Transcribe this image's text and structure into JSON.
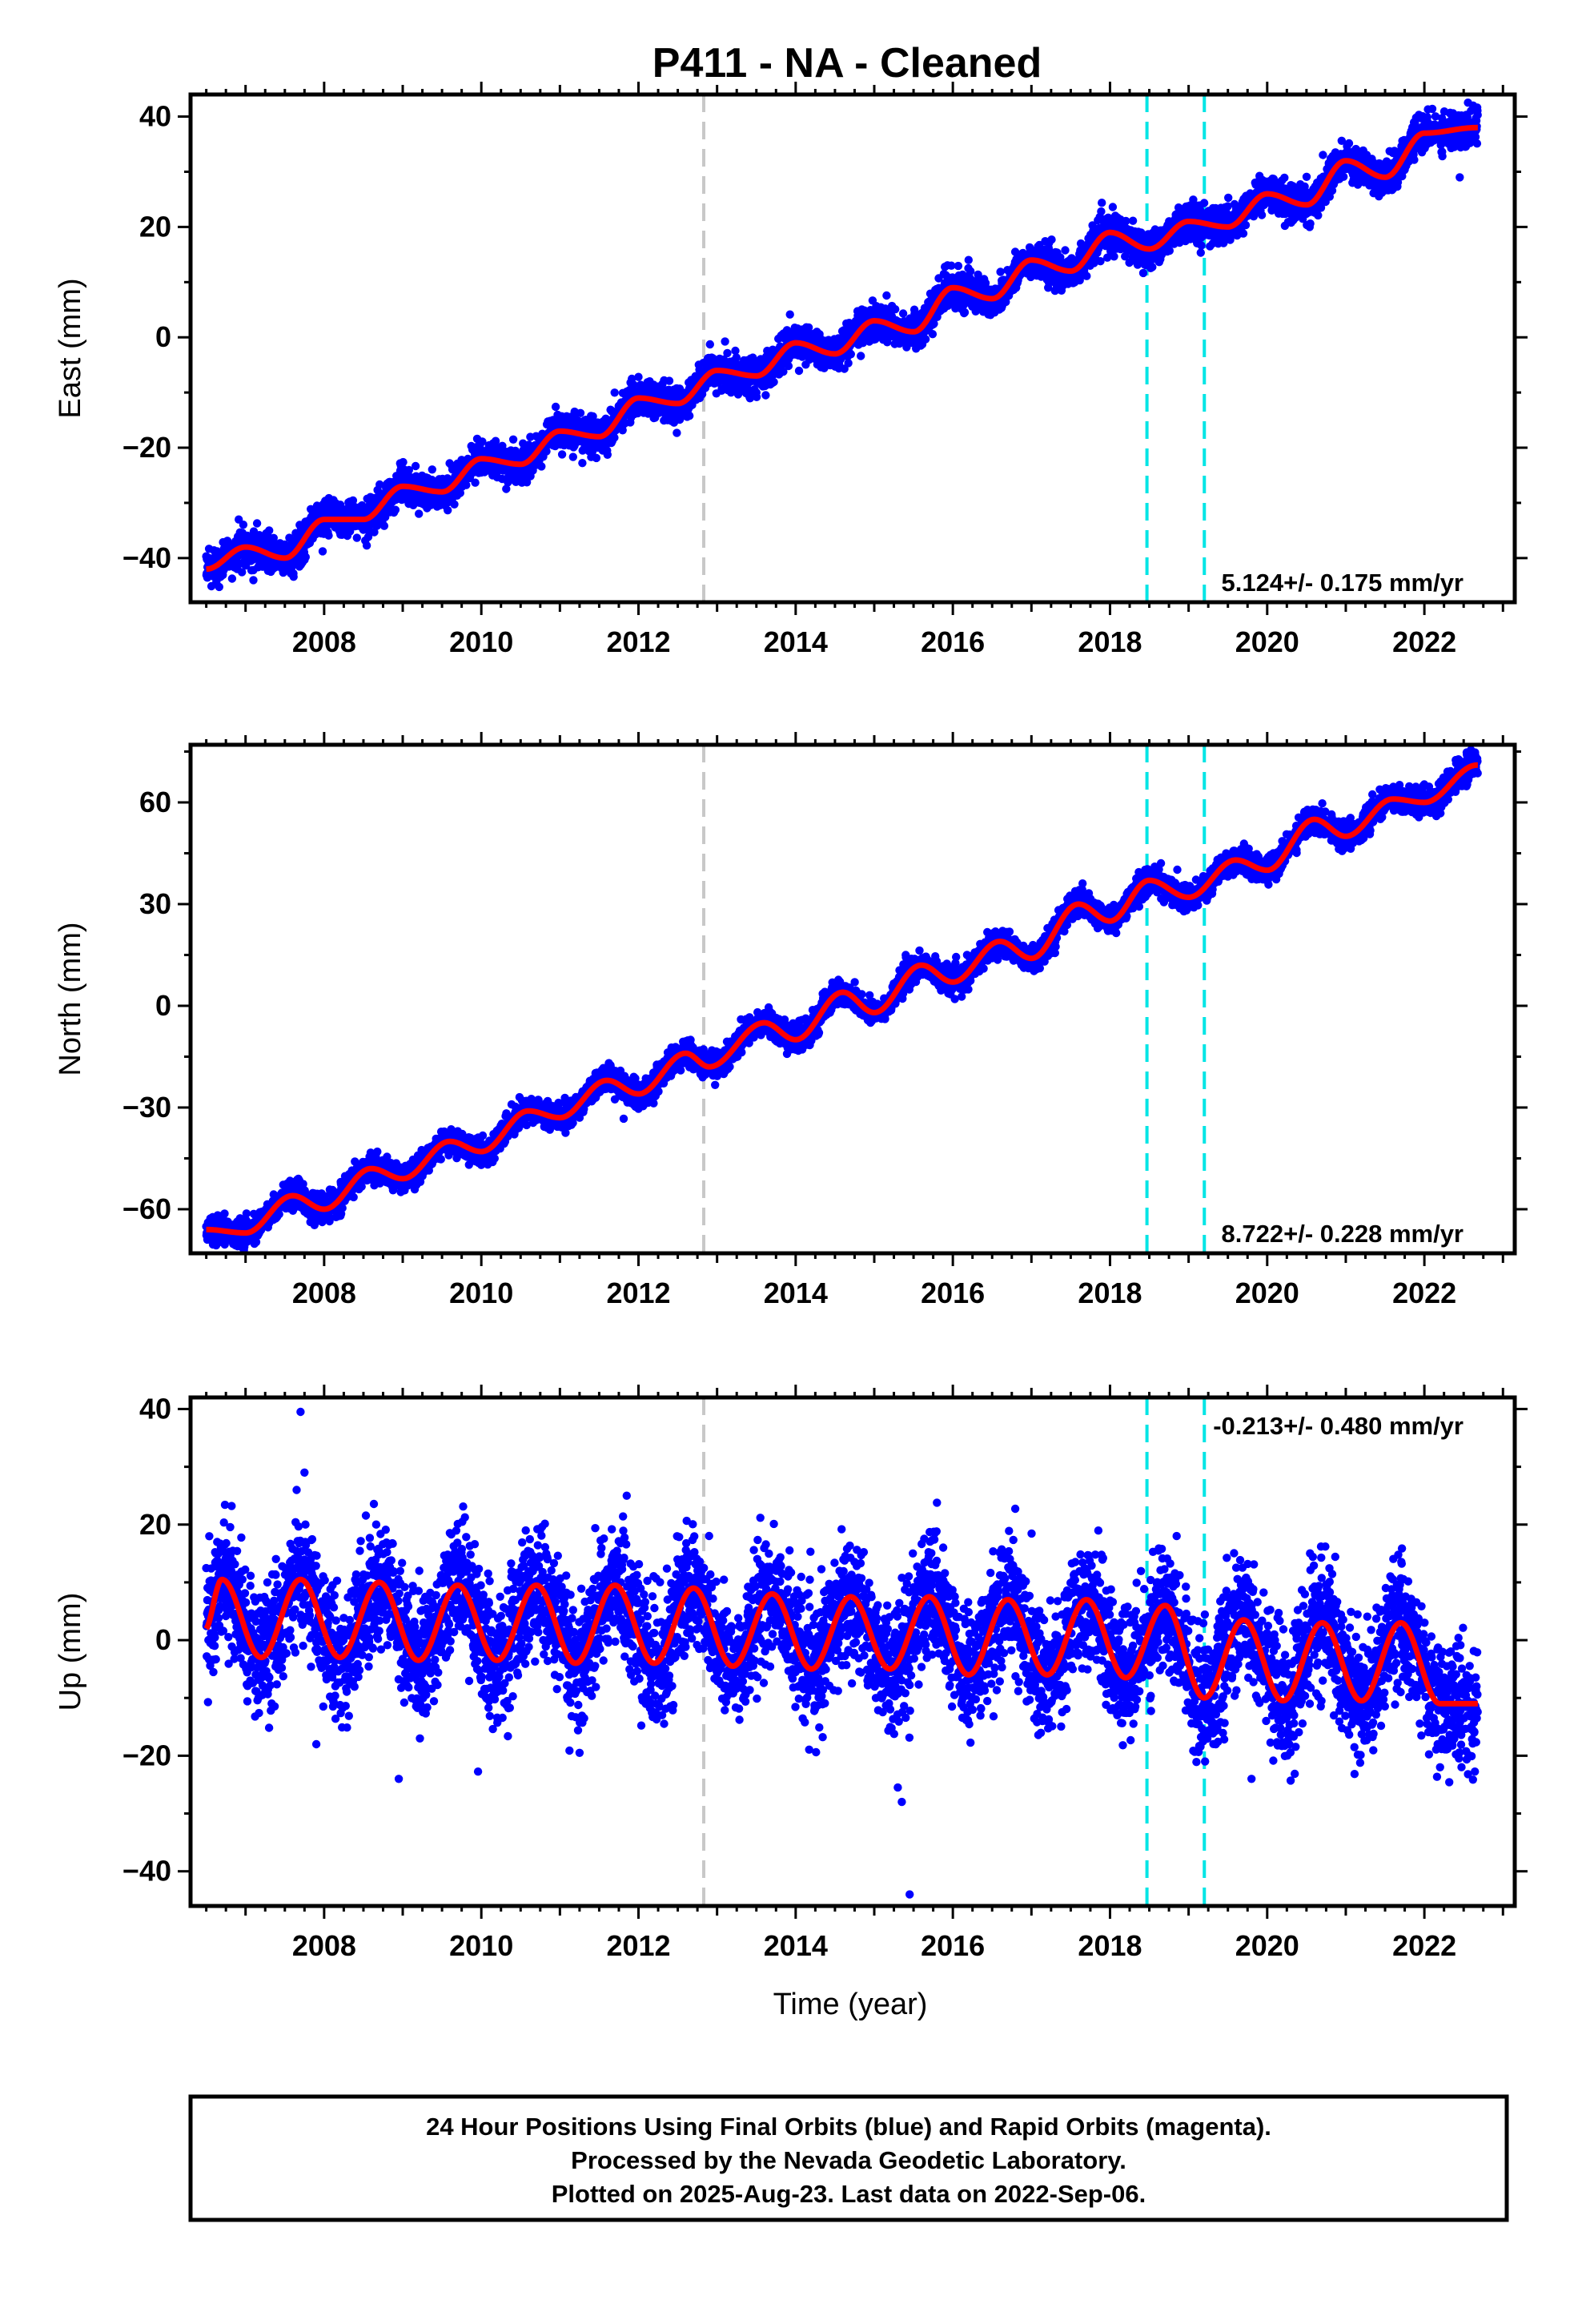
{
  "title": "P411  - NA - Cleaned",
  "xlabel": "Time (year)",
  "footer": [
    "24 Hour Positions Using Final Orbits (blue) and Rapid Orbits (magenta).",
    "Processed by the Nevada Geodetic Laboratory.",
    "Plotted on 2025-Aug-23. Last data on 2022-Sep-06."
  ],
  "colors": {
    "final_orbits": "#0000ff",
    "model_fit": "#ff0000",
    "event_line_gray": "#c8c8c8",
    "event_line_cyan": "#00e5e5",
    "frame": "#000000"
  },
  "chart_data": [
    {
      "type": "scatter",
      "component": "East",
      "ylabel": "East (mm)",
      "xlim": [
        2006.3,
        2023.15
      ],
      "ylim": [
        -48,
        44
      ],
      "x_ticks": [
        2008,
        2010,
        2012,
        2014,
        2016,
        2018,
        2020,
        2022
      ],
      "y_ticks": [
        -40,
        -20,
        0,
        20,
        40
      ],
      "grid": false,
      "rate_label": "5.124+/- 0.175 mm/yr",
      "rate_position": "bottom-right",
      "vertical_lines": [
        {
          "x": 2012.83,
          "color": "gray",
          "style": "dashed"
        },
        {
          "x": 2018.47,
          "color": "cyan",
          "style": "dashed"
        },
        {
          "x": 2019.2,
          "color": "cyan",
          "style": "dashed"
        }
      ],
      "series": [
        {
          "kind": "model",
          "x": [
            2006.5,
            2007.0,
            2007.5,
            2008.0,
            2008.5,
            2009.0,
            2009.5,
            2010.0,
            2010.5,
            2011.0,
            2011.5,
            2012.0,
            2012.5,
            2013.0,
            2013.5,
            2014.0,
            2014.5,
            2015.0,
            2015.5,
            2016.0,
            2016.5,
            2017.0,
            2017.5,
            2018.0,
            2018.5,
            2019.0,
            2019.5,
            2020.0,
            2020.5,
            2021.0,
            2021.5,
            2022.0,
            2022.67
          ],
          "y": [
            -42,
            -38,
            -40,
            -33,
            -33,
            -27,
            -28,
            -22,
            -23,
            -17,
            -18,
            -11,
            -12,
            -6,
            -7,
            -1,
            -3,
            3,
            1,
            9,
            7,
            14,
            12,
            19,
            16,
            21,
            20,
            26,
            24,
            32,
            29,
            37,
            38
          ]
        },
        {
          "kind": "daily_positions",
          "x_range": [
            2006.5,
            2022.68
          ],
          "scatter_std": 1.6,
          "outliers": [
            {
              "x": 2007.1,
              "y": -44
            },
            {
              "x": 2007.3,
              "y": -35
            },
            {
              "x": 2016.2,
              "y": 14
            },
            {
              "x": 2022.45,
              "y": 29
            },
            {
              "x": 2022.62,
              "y": 42
            }
          ]
        }
      ]
    },
    {
      "type": "scatter",
      "component": "North",
      "ylabel": "North (mm)",
      "xlim": [
        2006.3,
        2023.15
      ],
      "ylim": [
        -73,
        77
      ],
      "x_ticks": [
        2008,
        2010,
        2012,
        2014,
        2016,
        2018,
        2020,
        2022
      ],
      "y_ticks": [
        -60,
        -30,
        0,
        30,
        60
      ],
      "grid": false,
      "rate_label": "8.722+/- 0.228 mm/yr",
      "rate_position": "bottom-right",
      "vertical_lines": [
        {
          "x": 2012.83,
          "color": "gray",
          "style": "dashed"
        },
        {
          "x": 2018.47,
          "color": "cyan",
          "style": "dashed"
        },
        {
          "x": 2019.2,
          "color": "cyan",
          "style": "dashed"
        }
      ],
      "series": [
        {
          "kind": "model",
          "x": [
            2006.5,
            2007.0,
            2007.6,
            2008.0,
            2008.6,
            2009.0,
            2009.6,
            2010.0,
            2010.6,
            2011.0,
            2011.6,
            2012.0,
            2012.6,
            2012.9,
            2013.6,
            2014.0,
            2014.6,
            2015.0,
            2015.6,
            2016.0,
            2016.6,
            2017.0,
            2017.6,
            2018.0,
            2018.5,
            2019.0,
            2019.6,
            2020.0,
            2020.6,
            2021.0,
            2021.6,
            2022.0,
            2022.67
          ],
          "y": [
            -66,
            -67,
            -56,
            -60,
            -48,
            -51,
            -40,
            -43,
            -31,
            -33,
            -22,
            -26,
            -14,
            -18,
            -5,
            -10,
            4,
            -2,
            12,
            7,
            19,
            14,
            30,
            25,
            37,
            32,
            43,
            40,
            55,
            50,
            61,
            60,
            71
          ]
        },
        {
          "kind": "daily_positions",
          "x_range": [
            2006.5,
            2022.68
          ],
          "scatter_std": 1.9,
          "outliers": [
            {
              "x": 2006.9,
              "y": -70
            },
            {
              "x": 2007.6,
              "y": -52
            },
            {
              "x": 2015.4,
              "y": 15
            }
          ]
        }
      ]
    },
    {
      "type": "scatter",
      "component": "Up",
      "ylabel": "Up (mm)",
      "xlim": [
        2006.3,
        2023.15
      ],
      "ylim": [
        -46,
        42
      ],
      "x_ticks": [
        2008,
        2010,
        2012,
        2014,
        2016,
        2018,
        2020,
        2022
      ],
      "y_ticks": [
        -40,
        -20,
        0,
        20,
        40
      ],
      "grid": false,
      "rate_label": "-0.213+/- 0.480 mm/yr",
      "rate_position": "top-right",
      "vertical_lines": [
        {
          "x": 2012.83,
          "color": "gray",
          "style": "dashed"
        },
        {
          "x": 2018.47,
          "color": "cyan",
          "style": "dashed"
        },
        {
          "x": 2019.2,
          "color": "cyan",
          "style": "dashed"
        }
      ],
      "series": [
        {
          "kind": "model",
          "annual_peak_years": [
            2006.7,
            2007.7,
            2008.7,
            2009.7,
            2010.7,
            2011.7,
            2012.7,
            2013.7,
            2014.7,
            2015.7,
            2016.7,
            2017.7,
            2018.7,
            2019.7,
            2020.7,
            2021.7
          ],
          "peaks": [
            10.5,
            10.5,
            10,
            9.5,
            9.5,
            9.5,
            9,
            8,
            7.5,
            7.5,
            7,
            7,
            6,
            3.5,
            3,
            3
          ],
          "troughs": [
            -3,
            -3,
            -3.5,
            -3.5,
            -4,
            -4,
            -4.5,
            -5,
            -5,
            -6,
            -6,
            -6.5,
            -10,
            -10.5,
            -10.5,
            -11
          ]
        },
        {
          "kind": "daily_positions",
          "x_range": [
            2006.5,
            2022.68
          ],
          "scatter_std": 5.3,
          "outliers": [
            {
              "x": 2007.7,
              "y": 39.5
            },
            {
              "x": 2007.75,
              "y": 29
            },
            {
              "x": 2007.65,
              "y": 26
            },
            {
              "x": 2011.85,
              "y": 25
            },
            {
              "x": 2008.95,
              "y": -24
            },
            {
              "x": 2011.25,
              "y": -19.5
            },
            {
              "x": 2015.35,
              "y": -28
            },
            {
              "x": 2015.45,
              "y": -44
            },
            {
              "x": 2015.3,
              "y": -25.5
            },
            {
              "x": 2007.9,
              "y": -18
            },
            {
              "x": 2022.2,
              "y": -22
            },
            {
              "x": 2019.8,
              "y": -24
            }
          ]
        }
      ]
    }
  ]
}
